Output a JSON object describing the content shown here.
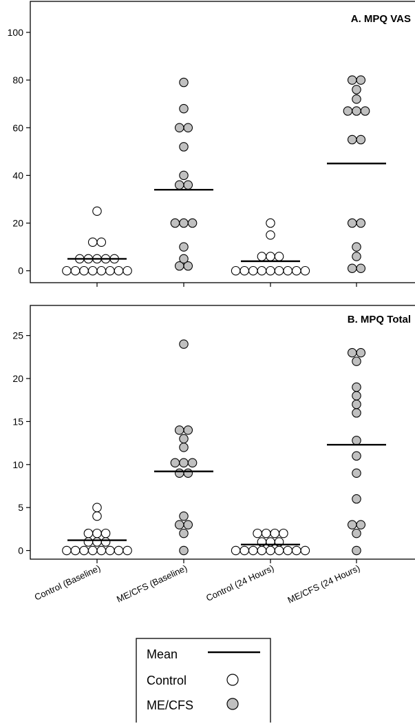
{
  "chart_data": [
    {
      "type": "scatter",
      "title": "A. MPQ VAS",
      "ylim": [
        -5,
        113
      ],
      "yticks": [
        "0",
        "20",
        "40",
        "60",
        "80",
        "100"
      ],
      "categories": [
        "Control (Baseline)",
        "ME/CFS (Baseline)",
        "Control (24  Hours)",
        "ME/CFS (24  Hours)"
      ],
      "groups": [
        {
          "category": "Control (Baseline)",
          "group": "Control",
          "mean": 5,
          "values": [
            25,
            12,
            12,
            5,
            5,
            5,
            5,
            5,
            0,
            0,
            0,
            0,
            0,
            0,
            0,
            0
          ]
        },
        {
          "category": "ME/CFS (Baseline)",
          "group": "ME/CFS",
          "mean": 34,
          "values": [
            79,
            68,
            60,
            60,
            52,
            40,
            36,
            36,
            20,
            20,
            20,
            10,
            5,
            2,
            2
          ]
        },
        {
          "category": "Control (24  Hours)",
          "group": "Control",
          "mean": 4,
          "values": [
            20,
            15,
            6,
            6,
            6,
            0,
            0,
            0,
            0,
            0,
            0,
            0,
            0,
            0
          ]
        },
        {
          "category": "ME/CFS (24  Hours)",
          "group": "ME/CFS",
          "mean": 45,
          "values": [
            80,
            80,
            76,
            72,
            67,
            67,
            67,
            55,
            55,
            20,
            20,
            10,
            6,
            1,
            1
          ]
        }
      ]
    },
    {
      "type": "scatter",
      "title": "B. MPQ Total",
      "ylim": [
        -1,
        28.5
      ],
      "yticks": [
        "0",
        "5",
        "10",
        "15",
        "20",
        "25"
      ],
      "categories": [
        "Control (Baseline)",
        "ME/CFS (Baseline)",
        "Control (24  Hours)",
        "ME/CFS (24  Hours)"
      ],
      "groups": [
        {
          "category": "Control (Baseline)",
          "group": "Control",
          "mean": 1.2,
          "values": [
            5,
            4,
            2,
            2,
            2,
            1,
            1,
            1,
            0,
            0,
            0,
            0,
            0,
            0,
            0,
            0
          ]
        },
        {
          "category": "ME/CFS (Baseline)",
          "group": "ME/CFS",
          "mean": 9.2,
          "values": [
            24,
            14,
            14,
            13,
            12,
            10.2,
            10.2,
            10.2,
            9,
            9,
            4,
            3,
            3,
            2,
            0
          ]
        },
        {
          "category": "Control (24  Hours)",
          "group": "Control",
          "mean": 0.7,
          "values": [
            2,
            2,
            2,
            2,
            1,
            1,
            1,
            0,
            0,
            0,
            0,
            0,
            0,
            0,
            0,
            0
          ]
        },
        {
          "category": "ME/CFS (24  Hours)",
          "group": "ME/CFS",
          "mean": 12.3,
          "values": [
            23,
            23,
            22,
            19,
            18,
            17,
            16,
            12.8,
            11,
            9,
            6,
            3,
            3,
            2,
            0
          ]
        }
      ]
    }
  ],
  "legend": {
    "mean_label": "Mean",
    "control_label": "Control",
    "mecfs_label": "ME/CFS"
  },
  "colors": {
    "control_fill": "#ffffff",
    "mecfs_fill": "#c0c0c0",
    "marker_stroke": "#000000",
    "mean_line": "#000000"
  }
}
